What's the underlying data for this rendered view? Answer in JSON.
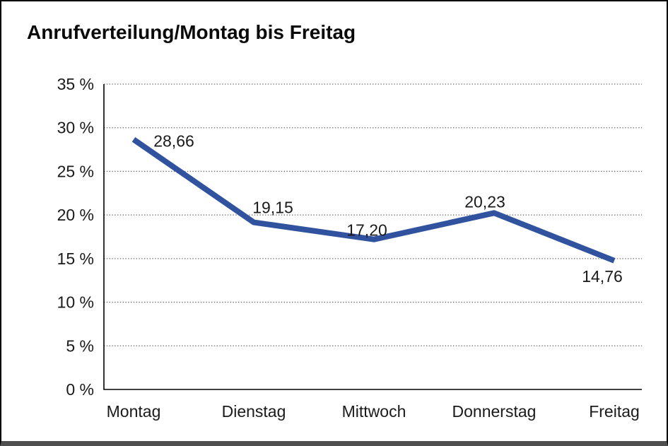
{
  "page": {
    "background_color": "#ffffff",
    "frame_border_color": "#000000",
    "bottom_bar_color": "#4f4f4f"
  },
  "title": "Anrufverteilung/Montag bis Freitag",
  "chart_data": {
    "type": "line",
    "title": "Anrufverteilung/Montag bis Freitag",
    "categories": [
      "Montag",
      "Dienstag",
      "Mittwoch",
      "Donnerstag",
      "Freitag"
    ],
    "series": [
      {
        "name": "Anrufverteilung",
        "values": [
          28.66,
          19.15,
          17.2,
          20.23,
          14.76
        ],
        "color": "#31529F"
      }
    ],
    "value_labels": [
      "28,66",
      "19,15",
      "17,20",
      "20,23",
      "14,76"
    ],
    "ylim": [
      0,
      35
    ],
    "yticks": [
      0,
      5,
      10,
      15,
      20,
      25,
      30,
      35
    ],
    "ytick_labels": [
      "0 %",
      "5 %",
      "10 %",
      "15 %",
      "20 %",
      "25 %",
      "30 %",
      "35 %"
    ],
    "xlabel": "",
    "ylabel": "",
    "grid": "horizontal-dotted",
    "grid_color": "#6b6b6b",
    "axis_color": "#000000",
    "text_color": "#1a1a1a",
    "legend": "none"
  }
}
